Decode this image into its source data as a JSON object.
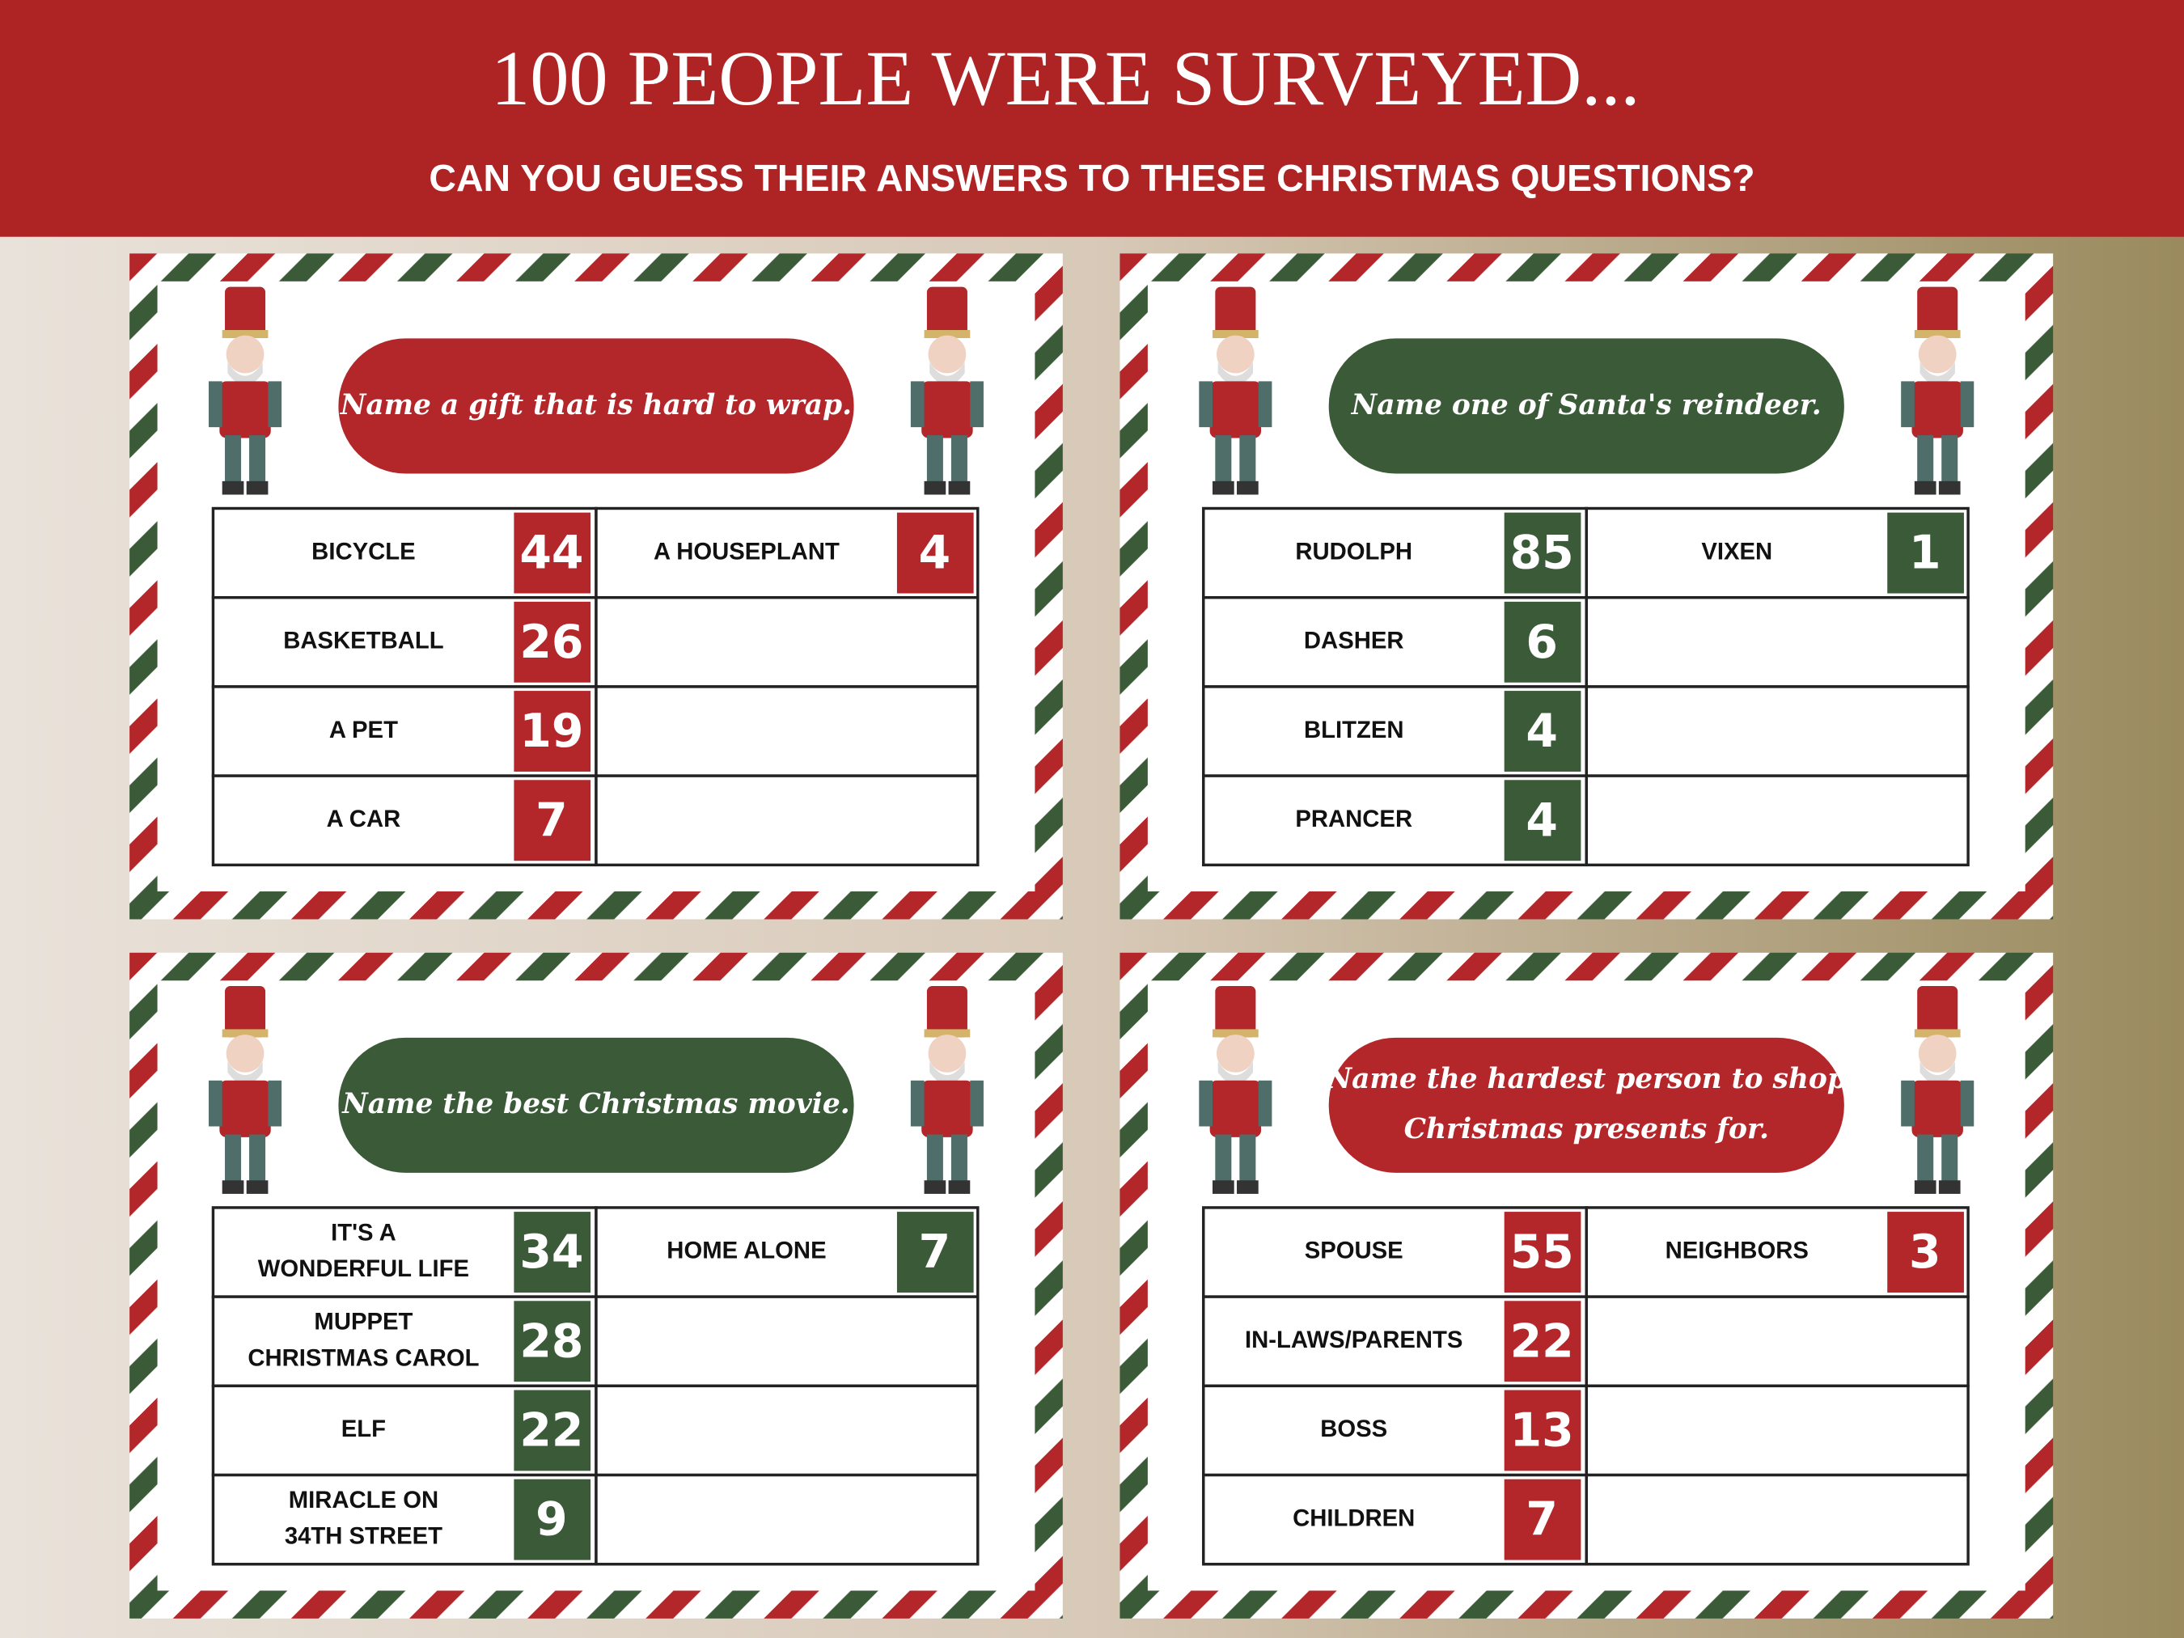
{
  "header": {
    "title": "100 PEOPLE WERE SURVEYED...",
    "subtitle": "CAN YOU GUESS THEIR ANSWERS TO THESE CHRISTMAS QUESTIONS?"
  },
  "cards": [
    {
      "color": "#b3262a",
      "question": [
        "Name a gift that is hard to wrap."
      ],
      "answers": [
        {
          "label": [
            "BICYCLE"
          ],
          "score": 44
        },
        {
          "label": [
            "BASKETBALL"
          ],
          "score": 26
        },
        {
          "label": [
            "A PET"
          ],
          "score": 19
        },
        {
          "label": [
            "A CAR"
          ],
          "score": 7
        },
        {
          "label": [
            "A HOUSEPLANT"
          ],
          "score": 4
        }
      ]
    },
    {
      "color": "#3a5a38",
      "question": [
        "Name one of Santa's reindeer."
      ],
      "answers": [
        {
          "label": [
            "RUDOLPH"
          ],
          "score": 85
        },
        {
          "label": [
            "DASHER"
          ],
          "score": 6
        },
        {
          "label": [
            "BLITZEN"
          ],
          "score": 4
        },
        {
          "label": [
            "PRANCER"
          ],
          "score": 4
        },
        {
          "label": [
            "VIXEN"
          ],
          "score": 1
        }
      ]
    },
    {
      "color": "#3a5a38",
      "question": [
        "Name the best Christmas movie."
      ],
      "answers": [
        {
          "label": [
            "IT'S A",
            "WONDERFUL LIFE"
          ],
          "score": 34
        },
        {
          "label": [
            "MUPPET",
            "CHRISTMAS CAROL"
          ],
          "score": 28
        },
        {
          "label": [
            "ELF"
          ],
          "score": 22
        },
        {
          "label": [
            "MIRACLE ON",
            "34TH STREET"
          ],
          "score": 9
        },
        {
          "label": [
            "HOME ALONE"
          ],
          "score": 7
        }
      ]
    },
    {
      "color": "#b3262a",
      "question": [
        "Name the hardest person to shop",
        "Christmas presents for."
      ],
      "answers": [
        {
          "label": [
            "SPOUSE"
          ],
          "score": 55
        },
        {
          "label": [
            "IN-LAWS/PARENTS"
          ],
          "score": 22
        },
        {
          "label": [
            "BOSS"
          ],
          "score": 13
        },
        {
          "label": [
            "CHILDREN"
          ],
          "score": 7
        },
        {
          "label": [
            "NEIGHBORS"
          ],
          "score": 3
        }
      ]
    }
  ]
}
